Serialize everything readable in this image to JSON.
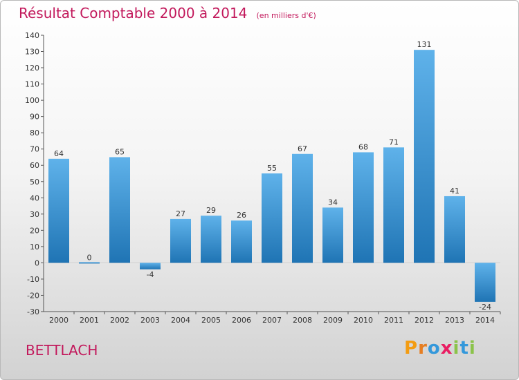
{
  "header": {
    "title": "Résultat Comptable 2000 à 2014",
    "subtitle": "(en milliers d'€)"
  },
  "commune": "BETTLACH",
  "logo": {
    "text": "Proxiti",
    "letters": [
      "P",
      "r",
      "o",
      "x",
      "i",
      "t",
      "i"
    ],
    "letter_colors": [
      "#f39c12",
      "#e67e22",
      "#3498db",
      "#e91e63",
      "#8bc34a",
      "#3498db",
      "#8bc34a"
    ]
  },
  "colors": {
    "bar_light": "#5fb2ea",
    "bar_dark": "#1f74b4",
    "axis": "#555555",
    "grid": "#cfcfcf",
    "text": "#333333",
    "accent": "#c2185b"
  },
  "chart_data": {
    "type": "bar",
    "title": "Résultat Comptable 2000 à 2014",
    "subtitle": "(en milliers d'€)",
    "xlabel": "",
    "ylabel": "",
    "categories": [
      "2000",
      "2001",
      "2002",
      "2003",
      "2004",
      "2005",
      "2006",
      "2007",
      "2008",
      "2009",
      "2010",
      "2011",
      "2012",
      "2013",
      "2014"
    ],
    "values": [
      64,
      0,
      65,
      -4,
      27,
      29,
      26,
      55,
      67,
      34,
      68,
      71,
      131,
      41,
      -24
    ],
    "ylim": [
      -30,
      140
    ],
    "yticks": [
      -30,
      -20,
      -10,
      0,
      10,
      20,
      30,
      40,
      50,
      60,
      70,
      80,
      90,
      100,
      110,
      120,
      130,
      140
    ],
    "grid": false,
    "legend": "none"
  }
}
